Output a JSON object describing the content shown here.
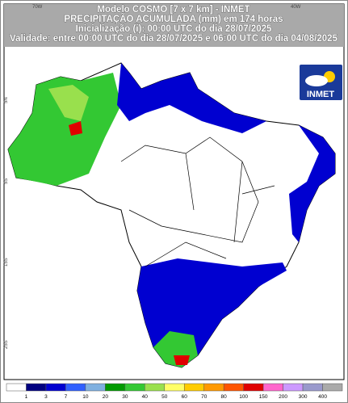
{
  "header": {
    "line1": "Modelo COSMO [7 x 7 km] - INMET",
    "line2": "PRECIPITAÇÃO ACUMULADA (mm) em 174 horas",
    "line3": "Inicialização (i): 00:00 UTC do dia 28/07/2025",
    "line4": "Validade: entre 00:00 UTC do dia 28/07/2025 e 06:00 UTC do dia 04/08/2025"
  },
  "axes": {
    "lon": [
      "70W",
      "40W"
    ],
    "lat": [
      "5N",
      "5S",
      "15S",
      "25S"
    ]
  },
  "logo": "INMET",
  "colorbar": {
    "colors": [
      "#ffffff",
      "#000080",
      "#0000d0",
      "#3060ff",
      "#7fb0e0",
      "#009a00",
      "#33c833",
      "#99e04d",
      "#ffff66",
      "#ffcc00",
      "#ff9900",
      "#ff5500",
      "#e00000",
      "#ff66cc",
      "#cc99ff",
      "#9999cc",
      "#aaaaaa"
    ],
    "labels": [
      "1",
      "3",
      "7",
      "10",
      "20",
      "30",
      "40",
      "50",
      "60",
      "70",
      "80",
      "100",
      "150",
      "200",
      "300",
      "400"
    ]
  }
}
